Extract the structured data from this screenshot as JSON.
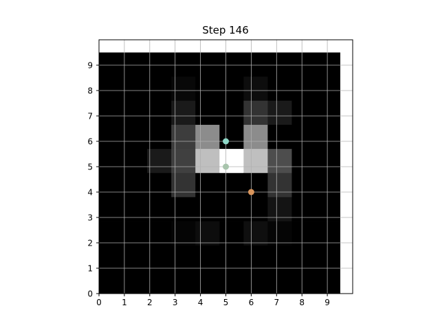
{
  "chart_data": {
    "type": "heatmap",
    "title": "Step 146",
    "xlabel": "",
    "ylabel": "",
    "xlim": [
      0,
      10
    ],
    "ylim": [
      0,
      10
    ],
    "x_ticks": [
      0,
      1,
      2,
      3,
      4,
      5,
      6,
      7,
      8,
      9
    ],
    "y_ticks": [
      0,
      1,
      2,
      3,
      4,
      5,
      6,
      7,
      8,
      9
    ],
    "grid": true,
    "colormap": "grayscale",
    "cell_extent": [
      0,
      9.5
    ],
    "grid_rows_top_to_bottom": [
      [
        0.0,
        0.0,
        0.0,
        0.0,
        0.0,
        0.0,
        0.0,
        0.0,
        0.0,
        0.0
      ],
      [
        0.0,
        0.0,
        0.0,
        0.03,
        0.0,
        0.0,
        0.05,
        0.0,
        0.0,
        0.0
      ],
      [
        0.0,
        0.0,
        0.0,
        0.1,
        0.0,
        0.0,
        0.2,
        0.1,
        0.0,
        0.0
      ],
      [
        0.0,
        0.0,
        0.0,
        0.24,
        0.55,
        0.0,
        0.55,
        0.0,
        0.0,
        0.0
      ],
      [
        0.0,
        0.0,
        0.1,
        0.25,
        0.75,
        1.0,
        0.75,
        0.3,
        0.0,
        0.0
      ],
      [
        0.0,
        0.0,
        0.0,
        0.2,
        0.0,
        0.0,
        0.0,
        0.2,
        0.0,
        0.0
      ],
      [
        0.0,
        0.0,
        0.0,
        0.0,
        0.0,
        0.0,
        0.0,
        0.08,
        0.0,
        0.0
      ],
      [
        0.0,
        0.0,
        0.0,
        0.02,
        0.05,
        0.0,
        0.06,
        0.02,
        0.0,
        0.0
      ],
      [
        0.0,
        0.0,
        0.0,
        0.0,
        0.0,
        0.0,
        0.0,
        0.0,
        0.0,
        0.0
      ],
      [
        0.0,
        0.0,
        0.0,
        0.0,
        0.0,
        0.0,
        0.0,
        0.0,
        0.0,
        0.0
      ]
    ],
    "points": [
      {
        "x": 5,
        "y": 6,
        "color": "#8fd8c8"
      },
      {
        "x": 5,
        "y": 5,
        "color": "#a8c4ac"
      },
      {
        "x": 6,
        "y": 4,
        "color": "#d9955c"
      }
    ]
  }
}
